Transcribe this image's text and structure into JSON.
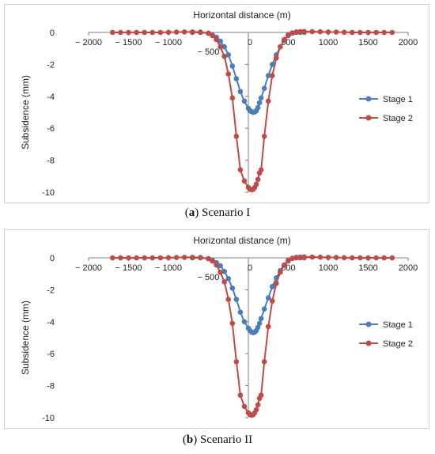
{
  "colors": {
    "stage1": "#4a7ebb",
    "stage2": "#be4b48",
    "axis": "#7f7f7f"
  },
  "captions": [
    {
      "letter": "a",
      "rest": " Scenario I"
    },
    {
      "letter": "b",
      "rest": " Scenario II"
    }
  ],
  "chart_data": [
    {
      "type": "line",
      "title": "",
      "xlabel": "Horizontal distance (m)",
      "ylabel": "Subsidence (mm)",
      "xlim": [
        -2000,
        2000
      ],
      "ylim": [
        -10,
        0
      ],
      "xticks": [
        -2000,
        -1500,
        -1000,
        -500,
        0,
        500,
        1000,
        1500,
        2000
      ],
      "xtick_labels": [
        "− 2000",
        "− 1500",
        "− 1000",
        "− 500",
        "0",
        "500",
        "1000",
        "1500",
        "2000"
      ],
      "yticks": [
        0,
        -2,
        -4,
        -6,
        -8,
        -10
      ],
      "legend_position": "right",
      "series": [
        {
          "name": "Stage 1",
          "color": "#4a7ebb",
          "x": [
            -700,
            -600,
            -500,
            -450,
            -400,
            -350,
            -300,
            -250,
            -200,
            -150,
            -100,
            -50,
            0,
            20,
            40,
            60,
            80,
            100,
            120,
            140,
            160,
            200,
            250,
            300,
            350,
            400,
            450,
            500,
            550,
            600,
            650,
            700
          ],
          "y": [
            0,
            0,
            -0.05,
            -0.15,
            -0.3,
            -0.55,
            -0.9,
            -1.4,
            -2.1,
            -2.9,
            -3.7,
            -4.3,
            -4.75,
            -4.9,
            -4.95,
            -5.0,
            -4.98,
            -4.9,
            -4.7,
            -4.4,
            -4.1,
            -3.5,
            -2.7,
            -2.0,
            -1.4,
            -0.9,
            -0.5,
            -0.2,
            -0.05,
            0,
            0,
            0
          ]
        },
        {
          "name": "Stage 2",
          "color": "#be4b48",
          "x": [
            -1700,
            -1600,
            -1500,
            -1400,
            -1300,
            -1200,
            -1100,
            -1000,
            -900,
            -800,
            -700,
            -600,
            -500,
            -450,
            -400,
            -350,
            -300,
            -250,
            -200,
            -150,
            -100,
            -50,
            0,
            20,
            40,
            60,
            80,
            100,
            120,
            140,
            160,
            200,
            250,
            300,
            350,
            400,
            450,
            500,
            550,
            600,
            650,
            700,
            800,
            900,
            1000,
            1100,
            1200,
            1300,
            1400,
            1500,
            1600,
            1700,
            1800
          ],
          "y": [
            0,
            0,
            0,
            0,
            0,
            0,
            0,
            0.01,
            0.02,
            0.03,
            0.03,
            0.02,
            -0.05,
            -0.2,
            -0.45,
            -0.9,
            -1.5,
            -2.6,
            -4.1,
            -6.5,
            -8.6,
            -9.3,
            -9.7,
            -9.8,
            -9.85,
            -9.82,
            -9.7,
            -9.5,
            -9.2,
            -8.8,
            -8.6,
            -6.5,
            -4.3,
            -2.7,
            -1.6,
            -0.9,
            -0.45,
            -0.15,
            -0.03,
            0.03,
            0.05,
            0.06,
            0.05,
            0.04,
            0.03,
            0.02,
            0.01,
            0,
            0,
            0,
            0,
            0,
            0
          ]
        }
      ]
    },
    {
      "type": "line",
      "title": "",
      "xlabel": "Horizontal distance (m)",
      "ylabel": "Subsidence (mm)",
      "xlim": [
        -2000,
        2000
      ],
      "ylim": [
        -10,
        0
      ],
      "xticks": [
        -2000,
        -1500,
        -1000,
        -500,
        0,
        500,
        1000,
        1500,
        2000
      ],
      "xtick_labels": [
        "− 2000",
        "− 1500",
        "− 1000",
        "− 500",
        "0",
        "500",
        "1000",
        "1500",
        "2000"
      ],
      "yticks": [
        0,
        -2,
        -4,
        -6,
        -8,
        -10
      ],
      "legend_position": "right",
      "series": [
        {
          "name": "Stage 1",
          "color": "#4a7ebb",
          "x": [
            -700,
            -600,
            -500,
            -450,
            -400,
            -350,
            -300,
            -250,
            -200,
            -150,
            -100,
            -50,
            0,
            20,
            40,
            60,
            80,
            100,
            120,
            140,
            160,
            200,
            250,
            300,
            350,
            400,
            450,
            500,
            550,
            600,
            650,
            700
          ],
          "y": [
            0,
            0,
            -0.05,
            -0.15,
            -0.3,
            -0.5,
            -0.85,
            -1.3,
            -1.9,
            -2.6,
            -3.4,
            -4.0,
            -4.4,
            -4.55,
            -4.65,
            -4.68,
            -4.65,
            -4.55,
            -4.35,
            -4.1,
            -3.8,
            -3.2,
            -2.5,
            -1.8,
            -1.25,
            -0.8,
            -0.45,
            -0.2,
            -0.05,
            0,
            0,
            0
          ]
        },
        {
          "name": "Stage 2",
          "color": "#be4b48",
          "x": [
            -1700,
            -1600,
            -1500,
            -1400,
            -1300,
            -1200,
            -1100,
            -1000,
            -900,
            -800,
            -700,
            -600,
            -500,
            -450,
            -400,
            -350,
            -300,
            -250,
            -200,
            -150,
            -100,
            -50,
            0,
            20,
            40,
            60,
            80,
            100,
            120,
            140,
            160,
            200,
            250,
            300,
            350,
            400,
            450,
            500,
            550,
            600,
            650,
            700,
            800,
            900,
            1000,
            1100,
            1200,
            1300,
            1400,
            1500,
            1600,
            1700,
            1800
          ],
          "y": [
            0,
            0,
            0,
            0,
            0,
            0,
            0,
            0.01,
            0.02,
            0.03,
            0.03,
            0.02,
            -0.05,
            -0.2,
            -0.45,
            -0.9,
            -1.5,
            -2.6,
            -4.1,
            -6.5,
            -8.6,
            -9.3,
            -9.7,
            -9.8,
            -9.85,
            -9.82,
            -9.7,
            -9.5,
            -9.2,
            -8.8,
            -8.6,
            -6.5,
            -4.3,
            -2.7,
            -1.6,
            -0.9,
            -0.45,
            -0.15,
            -0.03,
            0.03,
            0.05,
            0.06,
            0.05,
            0.04,
            0.03,
            0.02,
            0.01,
            0,
            0,
            0,
            0,
            0,
            0
          ]
        }
      ]
    }
  ]
}
